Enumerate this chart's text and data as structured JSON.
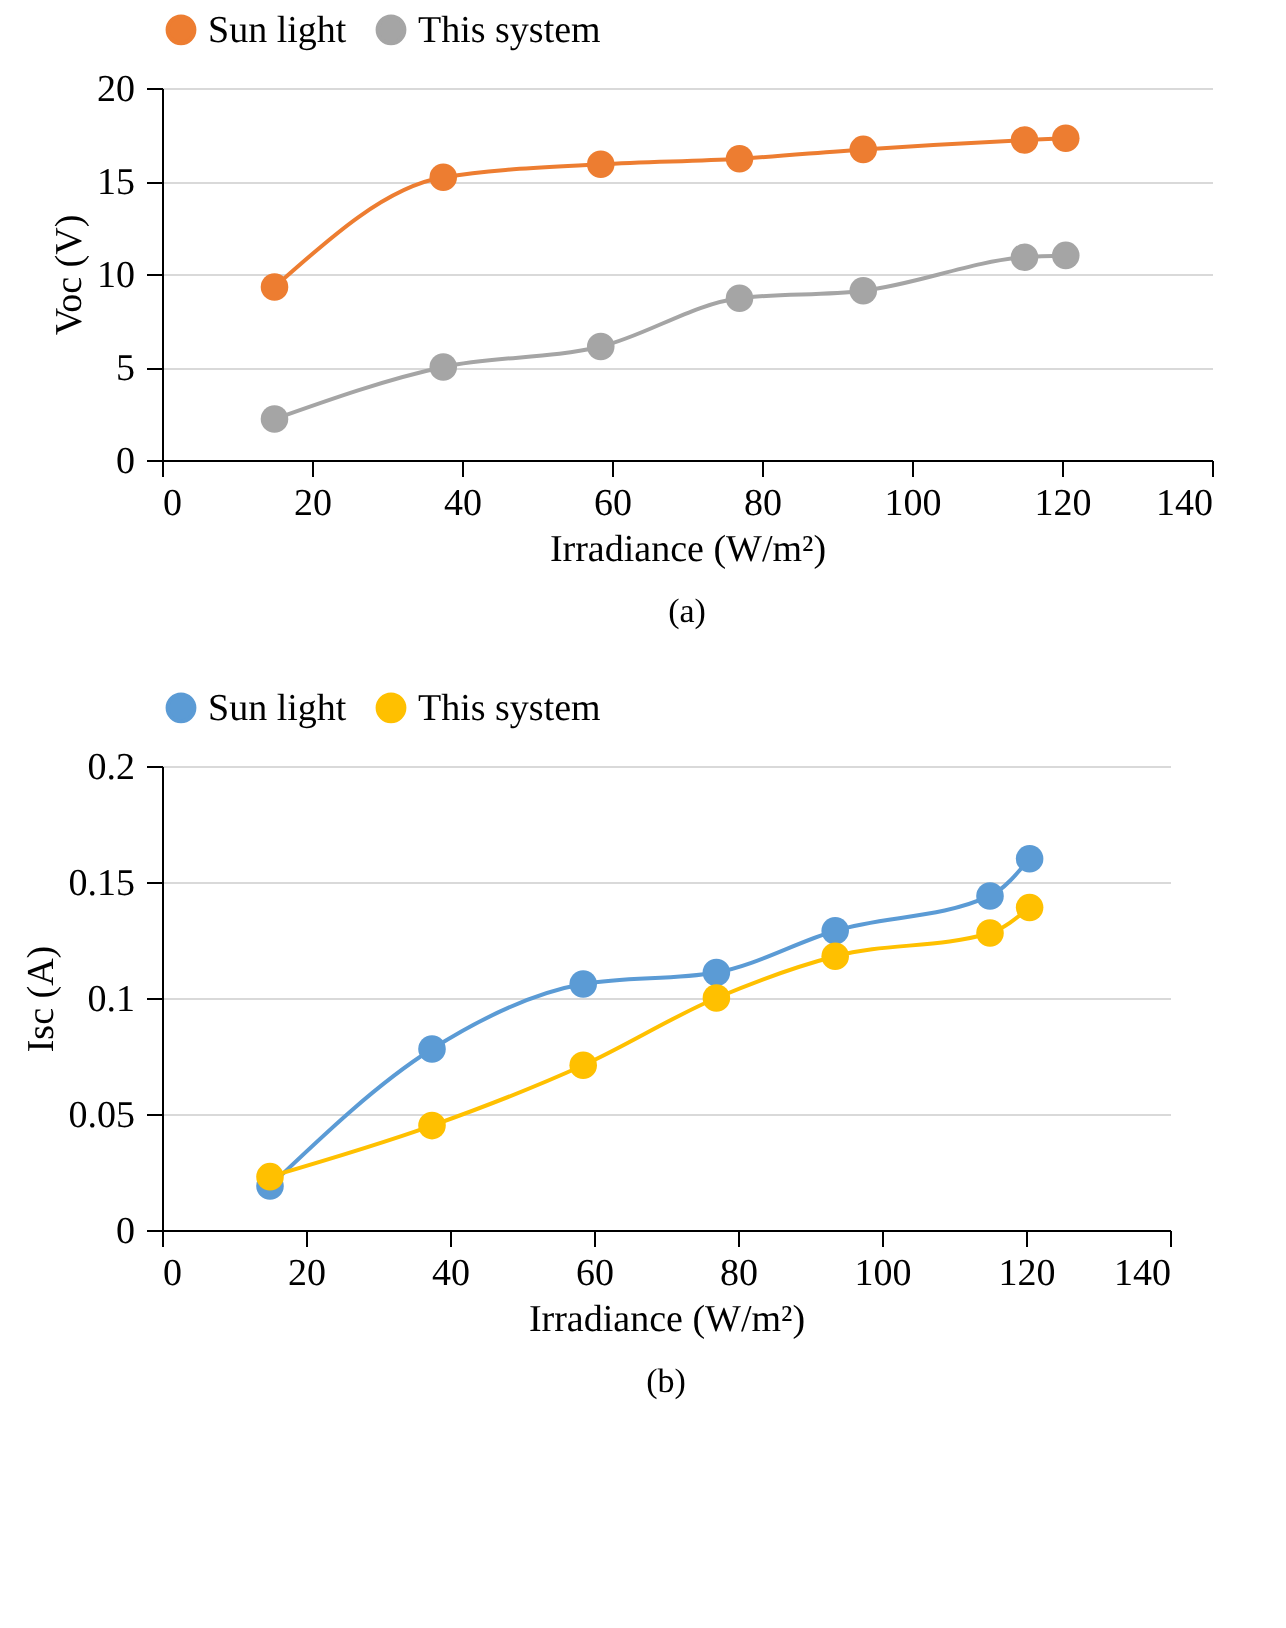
{
  "chart_data": [
    {
      "type": "line",
      "xlabel": "Irradiance (W/m²)",
      "ylabel": "Voc (V)",
      "annotations": [
        "(a)"
      ],
      "x": [
        15,
        37.5,
        58.5,
        77,
        93.5,
        115,
        120.5
      ],
      "series": [
        {
          "name": "Sun light",
          "color": "#ed7d31",
          "values": [
            9.3,
            15.2,
            15.9,
            16.2,
            16.7,
            17.2,
            17.3
          ]
        },
        {
          "name": "This system",
          "color": "#a5a5a5",
          "values": [
            2.2,
            5.0,
            6.1,
            8.7,
            9.1,
            10.9,
            11.0
          ]
        }
      ],
      "xlim": [
        0,
        140
      ],
      "xticks": [
        0,
        20,
        40,
        60,
        80,
        100,
        120,
        140
      ],
      "ylim": [
        0,
        20
      ],
      "yticks": [
        0,
        5,
        10,
        15,
        20
      ],
      "grid": "y",
      "legend": "top",
      "marker": "circle"
    },
    {
      "type": "line",
      "xlabel": "Irradiance (W/m²)",
      "ylabel": "Isc (A)",
      "annotations": [
        "(b)"
      ],
      "x": [
        15,
        37.5,
        58.5,
        77,
        93.5,
        115,
        120.5
      ],
      "series": [
        {
          "name": "Sun light",
          "color": "#5b9bd5",
          "values": [
            0.019,
            0.078,
            0.106,
            0.111,
            0.129,
            0.144,
            0.16
          ]
        },
        {
          "name": "This system",
          "color": "#ffc000",
          "values": [
            0.023,
            0.045,
            0.071,
            0.1,
            0.118,
            0.128,
            0.139
          ]
        }
      ],
      "xlim": [
        0,
        140
      ],
      "xticks": [
        0,
        20,
        40,
        60,
        80,
        100,
        120,
        140
      ],
      "ylim": [
        0,
        0.2
      ],
      "yticks": [
        0,
        0.05,
        0.1,
        0.15,
        0.2
      ],
      "grid": "y",
      "legend": "top",
      "marker": "circle"
    }
  ]
}
